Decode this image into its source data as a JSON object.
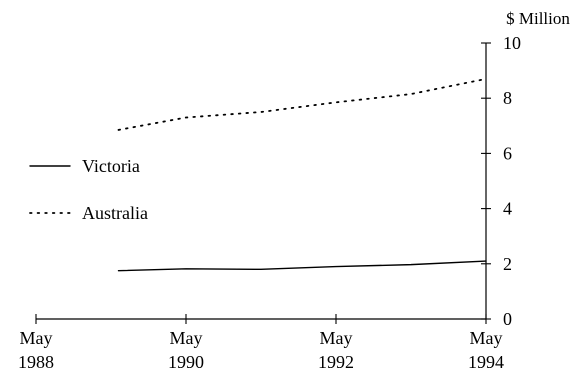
{
  "chart_data": {
    "type": "line",
    "x": [
      "May 1988",
      "May 1990",
      "May 1992",
      "May 1994"
    ],
    "x_tick_labels": [
      {
        "month": "May",
        "year": "1988"
      },
      {
        "month": "May",
        "year": "1990"
      },
      {
        "month": "May",
        "year": "1992"
      },
      {
        "month": "May",
        "year": "1994"
      }
    ],
    "ylabel": "$ Million",
    "ylim": [
      0,
      10
    ],
    "y_ticks": [
      0,
      2,
      4,
      6,
      8,
      10
    ],
    "grid": false,
    "legend_position": "left",
    "series": [
      {
        "name": "Victoria",
        "style": "solid",
        "color": "#000000",
        "points": [
          {
            "x": "1989.1",
            "y": 1.75
          },
          {
            "x": "1990.0",
            "y": 1.82
          },
          {
            "x": "1991.0",
            "y": 1.8
          },
          {
            "x": "1992.0",
            "y": 1.9
          },
          {
            "x": "1993.0",
            "y": 1.97
          },
          {
            "x": "1994.0",
            "y": 2.1
          }
        ]
      },
      {
        "name": "Australia",
        "style": "dotted",
        "color": "#000000",
        "points": [
          {
            "x": "1989.1",
            "y": 6.85
          },
          {
            "x": "1990.0",
            "y": 7.3
          },
          {
            "x": "1991.0",
            "y": 7.5
          },
          {
            "x": "1992.0",
            "y": 7.85
          },
          {
            "x": "1993.0",
            "y": 8.15
          },
          {
            "x": "1994.0",
            "y": 8.7
          }
        ]
      }
    ]
  }
}
